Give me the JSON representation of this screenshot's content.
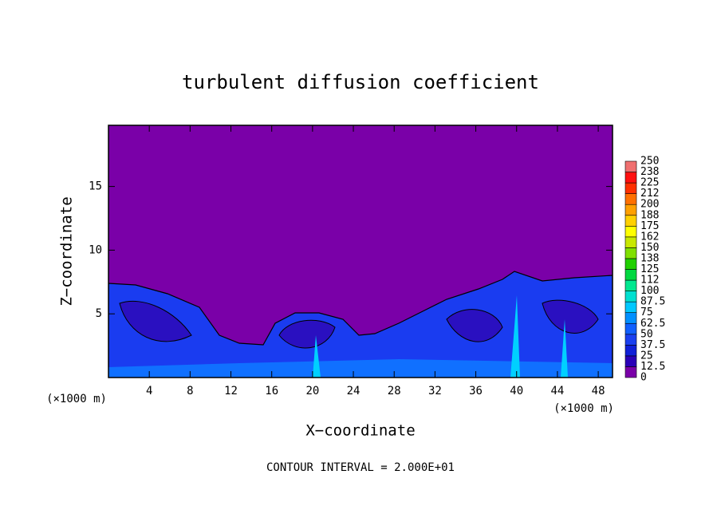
{
  "chart_data": {
    "type": "contour",
    "title": "turbulent diffusion coefficient",
    "x_label": "X−coordinate",
    "y_label": "Z−coordinate",
    "x_unit": "(×1000 m)",
    "y_unit": "(×1000 m)",
    "footnote": "CONTOUR INTERVAL = 2.000E+01",
    "xlim": [
      0,
      49.4
    ],
    "xticks": [
      4,
      8,
      12,
      16,
      20,
      24,
      28,
      32,
      36,
      40,
      44,
      48
    ],
    "ylim": [
      0,
      19.8
    ],
    "yticks": [
      5,
      10,
      15
    ],
    "colorbar": {
      "levels": [
        0,
        12.5,
        25,
        37.5,
        50,
        62.5,
        75,
        87.5,
        100,
        {
          "value": 112.5,
          "label": "112"
        },
        125,
        {
          "value": 137.5,
          "label": "138"
        },
        150,
        {
          "value": 162.5,
          "label": "162"
        },
        175,
        {
          "value": 187.5,
          "label": "188"
        },
        200,
        {
          "value": 212.5,
          "label": "212"
        },
        225,
        {
          "value": 237.5,
          "label": "238"
        },
        250
      ],
      "colors": [
        "#7a00a8",
        "#2a00b8",
        "#1020d8",
        "#1a40f0",
        "#1060ff",
        "#0090ff",
        "#00c8ff",
        "#00e0d0",
        "#00e890",
        "#00d840",
        "#20d000",
        "#80e000",
        "#c8e800",
        "#ffff00",
        "#ffd000",
        "#ffa000",
        "#ff7000",
        "#ff3000",
        "#ff1010",
        "#f07070"
      ]
    }
  }
}
